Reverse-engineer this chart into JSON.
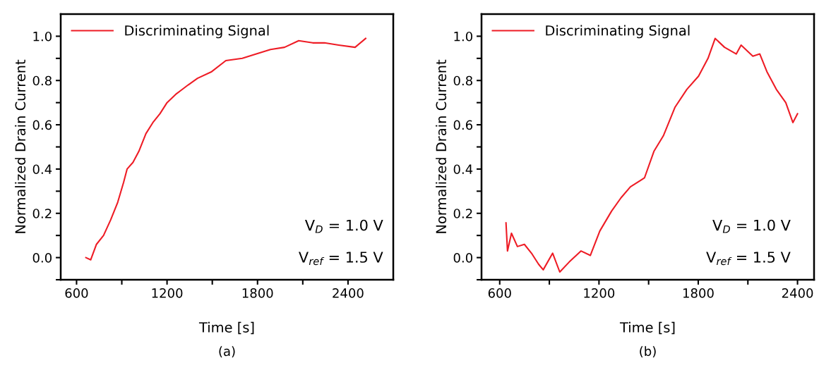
{
  "chart_data": [
    {
      "type": "line",
      "xlabel": "Time [s]",
      "ylabel": "Normalized Drain Current",
      "subtitle": "(a)",
      "xlim": [
        495,
        2700
      ],
      "ylim": [
        -0.1,
        1.1
      ],
      "xticks": [
        600,
        {
          "value": 900,
          "label": null
        },
        1200,
        {
          "value": 1500,
          "label": null
        },
        1800,
        {
          "value": 2100,
          "label": null
        },
        2400
      ],
      "yticks": [
        {
          "value": -0.1,
          "label": null
        },
        {
          "value": 0,
          "label": "0.0"
        },
        {
          "value": 0.1,
          "label": null
        },
        0.2,
        {
          "value": 0.3,
          "label": null
        },
        0.4,
        {
          "value": 0.5,
          "label": null
        },
        0.6,
        {
          "value": 0.7,
          "label": null
        },
        0.8,
        {
          "value": 0.9,
          "label": null
        },
        {
          "value": 1,
          "label": "1.0"
        }
      ],
      "legend": "top left",
      "grid": false,
      "annotations": [
        "V$_{D}$ = 1.0 V",
        "V$_{ref}$ = 1.5 V"
      ],
      "series": [
        {
          "name": "Discriminating Signal",
          "color": "#ee1c25",
          "x": [
            662,
            694,
            732,
            779,
            826,
            873,
            912,
            935,
            974,
            1013,
            1060,
            1106,
            1153,
            1200,
            1262,
            1340,
            1402,
            1496,
            1590,
            1699,
            1792,
            1886,
            1979,
            2073,
            2166,
            2244,
            2338,
            2447,
            2517
          ],
          "values": [
            0.0,
            -0.01,
            0.06,
            0.1,
            0.17,
            0.25,
            0.34,
            0.4,
            0.43,
            0.48,
            0.56,
            0.61,
            0.65,
            0.7,
            0.74,
            0.78,
            0.81,
            0.84,
            0.89,
            0.9,
            0.92,
            0.94,
            0.95,
            0.98,
            0.97,
            0.97,
            0.96,
            0.95,
            0.99
          ]
        }
      ]
    },
    {
      "type": "line",
      "xlabel": "Time [s]",
      "ylabel": "Normalized Drain Current",
      "subtitle": "(b)",
      "xlim": [
        490,
        2500
      ],
      "ylim": [
        -0.1,
        1.1
      ],
      "xticks": [
        600,
        {
          "value": 900,
          "label": null
        },
        1200,
        {
          "value": 1500,
          "label": null
        },
        1800,
        {
          "value": 2100,
          "label": null
        },
        2400
      ],
      "yticks": [
        {
          "value": -0.1,
          "label": null
        },
        {
          "value": 0,
          "label": "0.0"
        },
        {
          "value": 0.1,
          "label": null
        },
        0.2,
        {
          "value": 0.3,
          "label": null
        },
        0.4,
        {
          "value": 0.5,
          "label": null
        },
        0.6,
        {
          "value": 0.7,
          "label": null
        },
        0.8,
        {
          "value": 0.9,
          "label": null
        },
        {
          "value": 1,
          "label": "1.0"
        }
      ],
      "legend": "top left",
      "grid": false,
      "annotations": [
        "V$_{D}$ = 1.0 V",
        "V$_{ref}$ = 1.5 V"
      ],
      "series": [
        {
          "name": "Discriminating Signal",
          "color": "#ee1c25",
          "x": [
            638,
            647,
            671,
            707,
            749,
            792,
            835,
            863,
            920,
            963,
            1020,
            1091,
            1148,
            1205,
            1276,
            1333,
            1390,
            1475,
            1532,
            1589,
            1660,
            1731,
            1802,
            1859,
            1902,
            1959,
            2030,
            2059,
            2130,
            2172,
            2215,
            2272,
            2329,
            2372,
            2400
          ],
          "values": [
            0.157,
            0.03,
            0.11,
            0.05,
            0.06,
            0.02,
            -0.03,
            -0.055,
            0.02,
            -0.065,
            -0.02,
            0.03,
            0.01,
            0.12,
            0.21,
            0.27,
            0.32,
            0.36,
            0.48,
            0.55,
            0.68,
            0.76,
            0.82,
            0.9,
            0.99,
            0.95,
            0.92,
            0.96,
            0.91,
            0.92,
            0.84,
            0.76,
            0.7,
            0.61,
            0.65
          ]
        }
      ]
    }
  ]
}
